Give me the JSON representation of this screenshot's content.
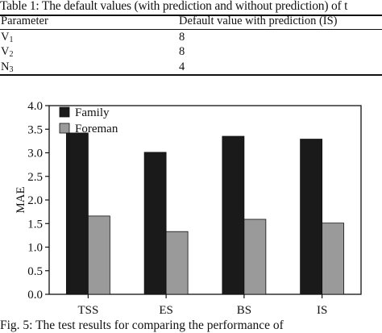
{
  "table": {
    "caption": "Table 1: The default values (with prediction and without prediction) of t",
    "header": [
      "Parameter",
      "Default value with prediction (IS)"
    ],
    "rows": [
      {
        "param_base": "V",
        "param_sub": "1",
        "value": "8"
      },
      {
        "param_base": "V",
        "param_sub": "2",
        "value": "8"
      },
      {
        "param_base": "N",
        "param_sub": "3",
        "value": "4"
      }
    ]
  },
  "chart_data": {
    "type": "bar",
    "title": "",
    "xlabel": "",
    "ylabel": "MAE",
    "ylim": [
      0,
      4.0
    ],
    "yticks": [
      "0.0",
      "0.5",
      "1.0",
      "1.5",
      "2.0",
      "2.5",
      "3.0",
      "3.5",
      "4.0"
    ],
    "categories": [
      "TSS",
      "ES",
      "BS",
      "IS"
    ],
    "series": [
      {
        "name": "Family",
        "color": "#1a1a1a",
        "values": [
          3.42,
          3.01,
          3.35,
          3.29
        ]
      },
      {
        "name": "Foreman",
        "color": "#9a9a9a",
        "values": [
          1.66,
          1.33,
          1.59,
          1.51
        ]
      }
    ],
    "legend_position": "top-left",
    "grid": false
  },
  "figure": {
    "caption": "Fig. 5: The test results for comparing the performance of"
  }
}
